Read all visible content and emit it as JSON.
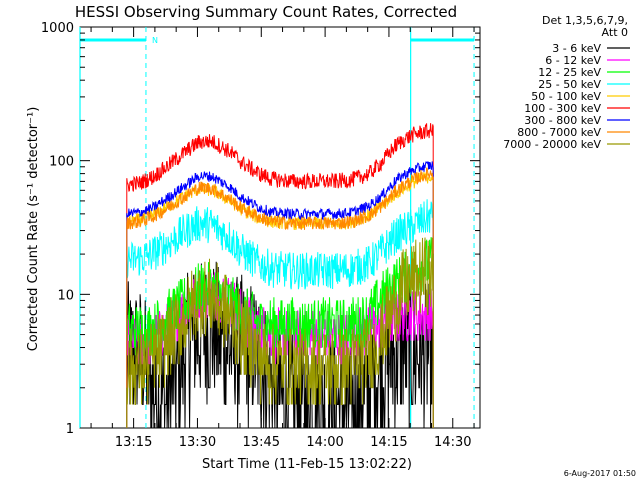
{
  "chart_data": {
    "type": "line",
    "title": "HESSI Observing Summary Count Rates, Corrected",
    "xlabel": "Start Time (11-Feb-15 13:02:22)",
    "ylabel": "Corrected Count Rate (s⁻¹ detector⁻¹)",
    "yscale": "log",
    "ylim": [
      1,
      1000
    ],
    "xlim_minutes": [
      0,
      94
    ],
    "y_ticks": [
      "1",
      "10",
      "100",
      "1000"
    ],
    "x_ticks": [
      {
        "label": "13:15",
        "minute": 12.6
      },
      {
        "label": "13:30",
        "minute": 27.6
      },
      {
        "label": "13:45",
        "minute": 42.6
      },
      {
        "label": "14:00",
        "minute": 57.6
      },
      {
        "label": "14:15",
        "minute": 72.6
      },
      {
        "label": "14:30",
        "minute": 87.6
      }
    ],
    "legend_header": [
      "Det 1,3,5,6,7,9,",
      "Att 0"
    ],
    "legend_position": "right",
    "grid": false,
    "footer_date": "6-Aug-2017 01:50",
    "n_marker": "N",
    "cyan_lines_minutes": {
      "solid": [
        0,
        77.7
      ],
      "dashed": [
        15.5,
        92.6
      ]
    },
    "night_top_y": 800,
    "series": [
      {
        "name": "3 - 6 keV",
        "color": "#000000",
        "x": [
          11,
          14,
          17,
          20,
          25,
          27,
          31,
          35,
          38,
          42,
          45,
          50,
          55,
          60,
          64,
          68,
          71,
          74,
          76,
          78,
          80,
          82,
          83
        ],
        "y": [
          3.5,
          3.5,
          2,
          1.5,
          4,
          5,
          5.5,
          4,
          4,
          3.5,
          2,
          1.5,
          1.5,
          1.5,
          1.5,
          2,
          3,
          3.5,
          4,
          3.5,
          3.5,
          3.5,
          3.5
        ]
      },
      {
        "name": "6 - 12 keV",
        "color": "#ff00ff",
        "x": [
          11,
          14,
          17,
          20,
          25,
          28,
          31,
          35,
          38,
          42,
          45,
          50,
          55,
          60,
          64,
          68,
          71,
          74,
          76,
          78,
          80,
          82,
          83
        ],
        "y": [
          4.5,
          4.5,
          4.5,
          5.5,
          8,
          10,
          10.5,
          9,
          7,
          5.5,
          5,
          5,
          5,
          5,
          5,
          5.5,
          6,
          6.5,
          7,
          7,
          7,
          7,
          7
        ]
      },
      {
        "name": "12 - 25 keV",
        "color": "#00ff00",
        "x": [
          11,
          14,
          17,
          20,
          25,
          28,
          31,
          35,
          38,
          42,
          45,
          50,
          55,
          60,
          64,
          68,
          71,
          74,
          76,
          78,
          80,
          82,
          83
        ],
        "y": [
          5.5,
          5.5,
          5.5,
          6.5,
          9,
          11,
          11,
          9,
          7.5,
          6,
          6,
          6,
          6,
          6,
          6,
          7,
          9.5,
          12,
          13,
          14.5,
          16,
          17,
          17.5
        ]
      },
      {
        "name": "25 - 50 keV",
        "color": "#00ffff",
        "x": [
          11,
          14,
          17,
          20,
          25,
          28,
          31,
          35,
          38,
          42,
          45,
          50,
          55,
          60,
          64,
          68,
          71,
          74,
          76,
          78,
          80,
          82,
          83
        ],
        "y": [
          18,
          18.5,
          20,
          23,
          30,
          34,
          33,
          27,
          21,
          17,
          15.5,
          15,
          15,
          15,
          15.5,
          17,
          21,
          27,
          30,
          32,
          35,
          38,
          39
        ]
      },
      {
        "name": "50 - 100 keV",
        "color": "#ffcc00",
        "x": [
          11,
          14,
          17,
          20,
          25,
          28,
          31,
          35,
          38,
          42,
          45,
          50,
          55,
          60,
          64,
          68,
          71,
          74,
          76,
          78,
          80,
          82,
          83
        ],
        "y": [
          35,
          36,
          39,
          44,
          55,
          62,
          60,
          51,
          43,
          37,
          35,
          34,
          34,
          34,
          35,
          39,
          46,
          56,
          62,
          68,
          73,
          76,
          76
        ]
      },
      {
        "name": "100 - 300 keV",
        "color": "#ff0000",
        "x": [
          11,
          14,
          17,
          20,
          25,
          28,
          31,
          35,
          38,
          42,
          45,
          50,
          55,
          60,
          64,
          68,
          71,
          74,
          76,
          78,
          80,
          82,
          83
        ],
        "y": [
          66,
          68,
          75,
          88,
          118,
          138,
          140,
          118,
          97,
          80,
          73,
          70,
          70,
          70,
          72,
          80,
          98,
          128,
          143,
          155,
          162,
          167,
          167
        ]
      },
      {
        "name": "300 - 800 keV",
        "color": "#0000ff",
        "x": [
          11,
          14,
          17,
          20,
          25,
          28,
          31,
          35,
          38,
          42,
          45,
          50,
          55,
          60,
          64,
          68,
          71,
          74,
          76,
          78,
          80,
          82,
          83
        ],
        "y": [
          40,
          41,
          44,
          51,
          66,
          77,
          76,
          64,
          53,
          45,
          41,
          40,
          40,
          40,
          41,
          46,
          55,
          70,
          78,
          84,
          89,
          92,
          92
        ]
      },
      {
        "name": "800 - 7000 keV",
        "color": "#ff8800",
        "x": [
          11,
          14,
          17,
          20,
          25,
          28,
          31,
          35,
          38,
          42,
          45,
          50,
          55,
          60,
          64,
          68,
          71,
          74,
          76,
          78,
          80,
          82,
          83
        ],
        "y": [
          34,
          35,
          38,
          43,
          55,
          63,
          62,
          52,
          44,
          38,
          35,
          34,
          34,
          34,
          35,
          39,
          46,
          58,
          65,
          71,
          76,
          80,
          80
        ]
      },
      {
        "name": "7000 - 20000 keV",
        "color": "#999900",
        "x": [
          11,
          14,
          17,
          20,
          25,
          28,
          31,
          35,
          38,
          42,
          45,
          50,
          55,
          60,
          64,
          68,
          71,
          74,
          76,
          78,
          80,
          82,
          83
        ],
        "y": [
          2.7,
          2.8,
          3.2,
          4,
          7,
          9.5,
          9.5,
          7,
          5,
          3.5,
          3,
          2.8,
          2.8,
          2.8,
          3,
          3.5,
          5,
          8.5,
          11,
          12.5,
          13.5,
          14,
          14
        ]
      }
    ]
  }
}
